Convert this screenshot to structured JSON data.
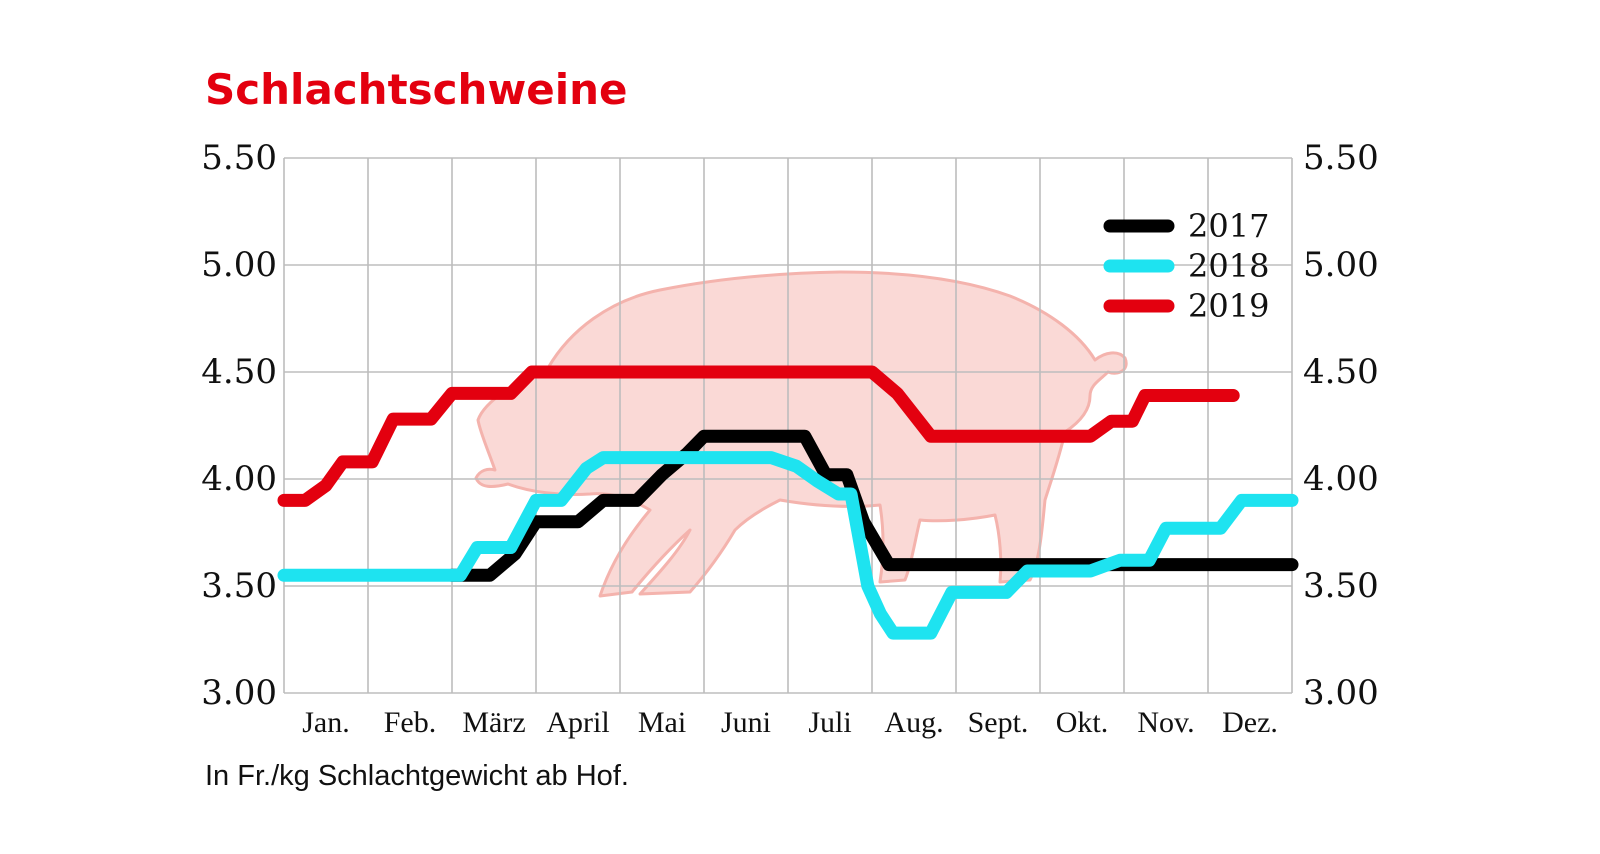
{
  "chart_data": {
    "type": "line",
    "title": "Schlachtschweine",
    "note": "In Fr./kg Schlachtgewicht ab Hof.",
    "ylim": [
      3.0,
      5.5
    ],
    "xlim": [
      0,
      12
    ],
    "y_ticks": [
      {
        "value": 5.5,
        "label": "5.50"
      },
      {
        "value": 5.0,
        "label": "5.00"
      },
      {
        "value": 4.5,
        "label": "4.50"
      },
      {
        "value": 4.0,
        "label": "4.00"
      },
      {
        "value": 3.5,
        "label": "3.50"
      },
      {
        "value": 3.0,
        "label": "3.00"
      }
    ],
    "categories": [
      "Jan.",
      "Feb.",
      "März",
      "April",
      "Mai",
      "Juni",
      "Juli",
      "Aug.",
      "Sept.",
      "Okt.",
      "Nov.",
      "Dez."
    ],
    "grid": true,
    "legend_position": "top-right",
    "background_image": "pig-silhouette",
    "series": [
      {
        "name": "2017",
        "color": "#000000",
        "points": [
          [
            2.0,
            3.55
          ],
          [
            2.45,
            3.55
          ],
          [
            2.75,
            3.65
          ],
          [
            3.0,
            3.8
          ],
          [
            3.5,
            3.8
          ],
          [
            3.8,
            3.9
          ],
          [
            4.2,
            3.9
          ],
          [
            4.5,
            4.02
          ],
          [
            4.8,
            4.12
          ],
          [
            5.0,
            4.2
          ],
          [
            6.2,
            4.2
          ],
          [
            6.45,
            4.02
          ],
          [
            6.7,
            4.02
          ],
          [
            6.9,
            3.8
          ],
          [
            7.2,
            3.6
          ],
          [
            12.0,
            3.6
          ]
        ]
      },
      {
        "name": "2018",
        "color": "#1ee3f0",
        "points": [
          [
            0.0,
            3.55
          ],
          [
            2.1,
            3.55
          ],
          [
            2.3,
            3.68
          ],
          [
            2.7,
            3.68
          ],
          [
            3.0,
            3.9
          ],
          [
            3.3,
            3.9
          ],
          [
            3.6,
            4.05
          ],
          [
            3.8,
            4.1
          ],
          [
            5.8,
            4.1
          ],
          [
            6.1,
            4.06
          ],
          [
            6.35,
            3.99
          ],
          [
            6.6,
            3.93
          ],
          [
            6.75,
            3.93
          ],
          [
            6.95,
            3.5
          ],
          [
            7.1,
            3.37
          ],
          [
            7.25,
            3.28
          ],
          [
            7.7,
            3.28
          ],
          [
            7.95,
            3.47
          ],
          [
            8.1,
            3.47
          ],
          [
            8.6,
            3.47
          ],
          [
            8.85,
            3.57
          ],
          [
            9.6,
            3.57
          ],
          [
            9.95,
            3.62
          ],
          [
            10.3,
            3.62
          ],
          [
            10.5,
            3.77
          ],
          [
            11.15,
            3.77
          ],
          [
            11.4,
            3.9
          ],
          [
            12.0,
            3.9
          ]
        ]
      },
      {
        "name": "2019",
        "color": "#e3000f",
        "points": [
          [
            0.0,
            3.9
          ],
          [
            0.25,
            3.9
          ],
          [
            0.5,
            3.97
          ],
          [
            0.7,
            4.08
          ],
          [
            1.05,
            4.08
          ],
          [
            1.3,
            4.28
          ],
          [
            1.75,
            4.28
          ],
          [
            2.0,
            4.4
          ],
          [
            2.7,
            4.4
          ],
          [
            2.95,
            4.5
          ],
          [
            7.0,
            4.5
          ],
          [
            7.3,
            4.4
          ],
          [
            7.7,
            4.2
          ],
          [
            9.6,
            4.2
          ],
          [
            9.85,
            4.27
          ],
          [
            10.1,
            4.27
          ],
          [
            10.25,
            4.39
          ],
          [
            11.3,
            4.39
          ]
        ]
      }
    ]
  }
}
